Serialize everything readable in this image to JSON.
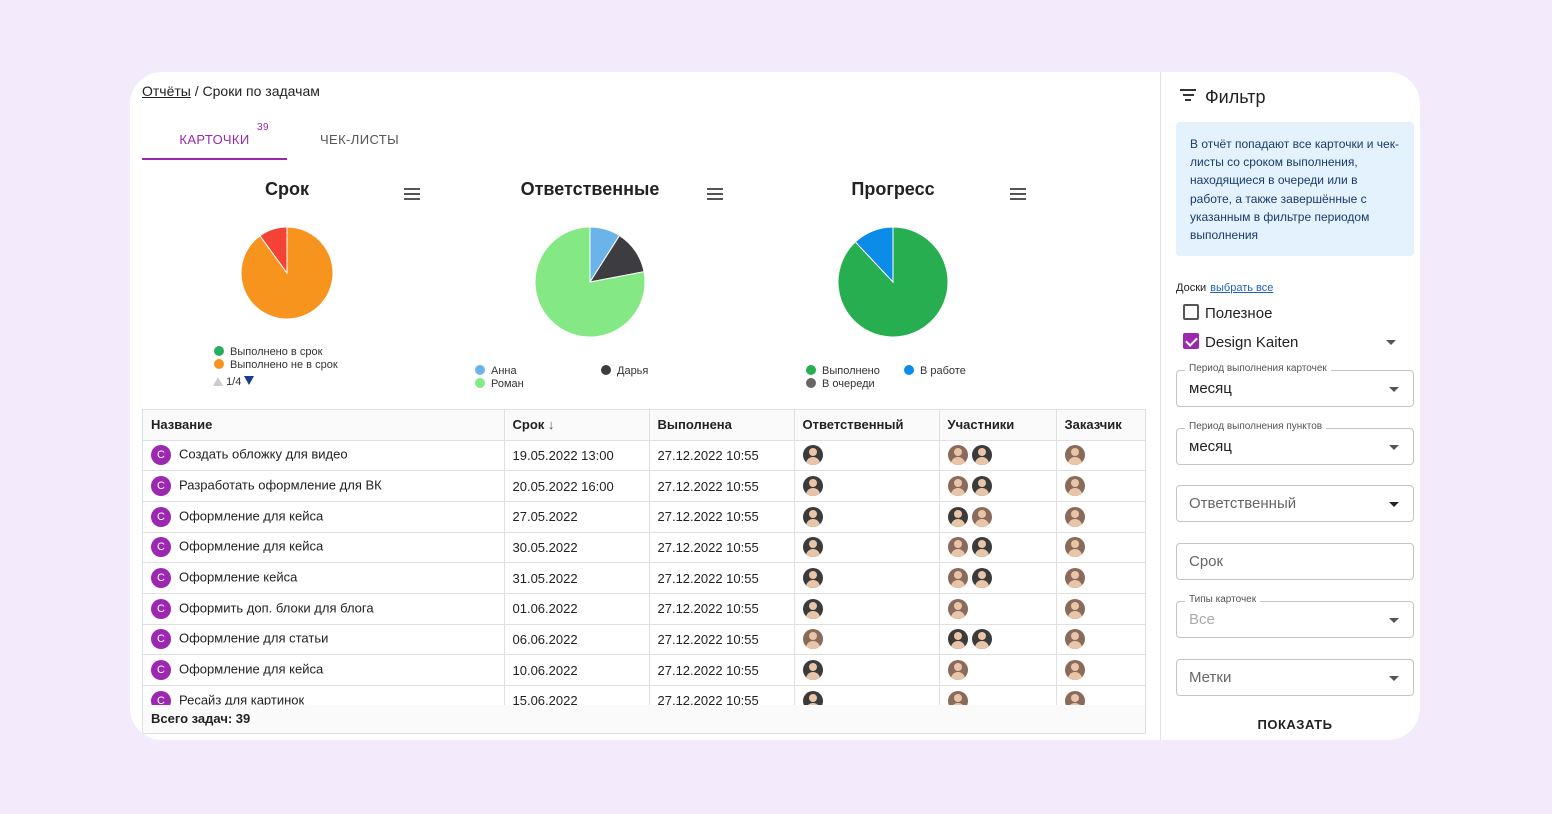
{
  "breadcrumb": {
    "root": "Отчёты",
    "separator": " / ",
    "current": "Сроки по задачам"
  },
  "tabs": [
    {
      "label": "КАРТОЧКИ",
      "count": "39",
      "active": true
    },
    {
      "label": "ЧЕК-ЛИСТЫ",
      "active": false
    }
  ],
  "charts": [
    {
      "title": "Срок",
      "chart_data": {
        "type": "pie",
        "series": [
          {
            "name": "Выполнено в срок",
            "value": 0,
            "color": "#27ae60"
          },
          {
            "name": "Выполнено не в срок",
            "value": 90,
            "color": "#f7941d"
          },
          {
            "name": "",
            "value": 10,
            "color": "#f44336"
          }
        ]
      },
      "legend": [
        {
          "label": "Выполнено в срок",
          "color": "#27ae60"
        },
        {
          "label": "Выполнено не в срок",
          "color": "#f7941d"
        }
      ],
      "pager": "1/4"
    },
    {
      "title": "Ответственные",
      "chart_data": {
        "type": "pie",
        "series": [
          {
            "name": "Анна",
            "value": 9,
            "color": "#6ab4ea"
          },
          {
            "name": "Дарья",
            "value": 13,
            "color": "#3c3c41"
          },
          {
            "name": "Роман",
            "value": 78,
            "color": "#84e884"
          }
        ]
      },
      "legend": [
        {
          "label": "Анна",
          "color": "#6ab4ea"
        },
        {
          "label": "Дарья",
          "color": "#3c3c41"
        },
        {
          "label": "Роман",
          "color": "#84e884"
        }
      ]
    },
    {
      "title": "Прогресс",
      "chart_data": {
        "type": "pie",
        "series": [
          {
            "name": "Выполнено",
            "value": 88,
            "color": "#27ae50"
          },
          {
            "name": "В работе",
            "value": 12,
            "color": "#0a8ce8"
          },
          {
            "name": "В очереди",
            "value": 0,
            "color": "#666666"
          }
        ]
      },
      "legend": [
        {
          "label": "Выполнено",
          "color": "#27ae50"
        },
        {
          "label": "В работе",
          "color": "#0a8ce8"
        },
        {
          "label": "В очереди",
          "color": "#666666"
        }
      ]
    }
  ],
  "table": {
    "headers": [
      "Название",
      "Срок",
      "Выполнена",
      "Ответственный",
      "Участники",
      "Заказчик"
    ],
    "sort_icon": "arrow-down-icon",
    "badge": "С",
    "rows": [
      {
        "name": "Создать обложку для видео",
        "due": "19.05.2022 13:00",
        "done": "27.12.2022 10:55",
        "resp": [
          "dark"
        ],
        "members": [
          "warm",
          "dark"
        ],
        "client": [
          "warm"
        ]
      },
      {
        "name": "Разработать оформление для ВК",
        "due": "20.05.2022 16:00",
        "done": "27.12.2022 10:55",
        "resp": [
          "dark"
        ],
        "members": [
          "warm",
          "dark"
        ],
        "client": [
          "warm"
        ]
      },
      {
        "name": "Оформление для кейса",
        "due": "27.05.2022",
        "done": "27.12.2022 10:55",
        "resp": [
          "dark"
        ],
        "members": [
          "dark",
          "warm"
        ],
        "client": [
          "warm"
        ]
      },
      {
        "name": "Оформление для кейса",
        "due": "30.05.2022",
        "done": "27.12.2022 10:55",
        "resp": [
          "dark"
        ],
        "members": [
          "warm",
          "dark"
        ],
        "client": [
          "warm"
        ]
      },
      {
        "name": "Оформление кейса",
        "due": "31.05.2022",
        "done": "27.12.2022 10:55",
        "resp": [
          "dark"
        ],
        "members": [
          "warm",
          "dark"
        ],
        "client": [
          "warm"
        ]
      },
      {
        "name": "Оформить доп. блоки для блога",
        "due": "01.06.2022",
        "done": "27.12.2022 10:55",
        "resp": [
          "dark"
        ],
        "members": [
          "warm"
        ],
        "client": [
          "warm"
        ]
      },
      {
        "name": "Оформление для статьи",
        "due": "06.06.2022",
        "done": "27.12.2022 10:55",
        "resp": [
          "warm"
        ],
        "members": [
          "dark",
          "dark"
        ],
        "client": [
          "warm"
        ]
      },
      {
        "name": "Оформление для кейса",
        "due": "10.06.2022",
        "done": "27.12.2022 10:55",
        "resp": [
          "dark"
        ],
        "members": [
          "warm"
        ],
        "client": [
          "warm"
        ]
      },
      {
        "name": "Ресайз для картинок",
        "due": "15.06.2022",
        "done": "27.12.2022 10:55",
        "resp": [
          "dark"
        ],
        "members": [
          "warm"
        ],
        "client": [
          "warm"
        ]
      }
    ],
    "footer": "Всего задач: 39"
  },
  "filter": {
    "title": "Фильтр",
    "info": "В отчёт попадают все карточки и чек-листы со сроком выполнения, находящиеся в очереди или в работе, а также завершённые с указанным в фильтре периодом выполнения",
    "boards_label": "Доски",
    "select_all": "выбрать все",
    "boards": [
      {
        "label": "Полезное",
        "checked": false
      },
      {
        "label": "Design Kaiten",
        "checked": true
      }
    ],
    "fields": {
      "card_period_label": "Период выполнения карточек",
      "card_period_value": "месяц",
      "item_period_label": "Период выполнения пунктов",
      "item_period_value": "месяц",
      "responsible_placeholder": "Ответственный",
      "due_placeholder": "Срок",
      "card_types_label": "Типы карточек",
      "card_types_value": "Все",
      "tags_placeholder": "Метки"
    },
    "show_button": "ПОКАЗАТЬ"
  }
}
